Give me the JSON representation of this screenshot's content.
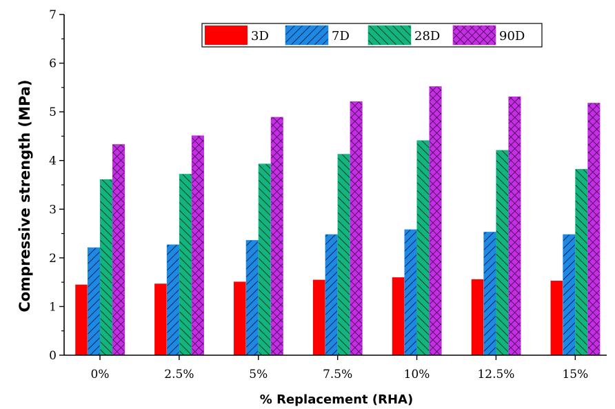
{
  "chart_data": {
    "type": "bar",
    "xlabel": "% Replacement (RHA)",
    "ylabel": "Compressive strength (MPa)",
    "ylim": [
      0,
      7
    ],
    "yticks": [
      "0",
      "1",
      "2",
      "3",
      "4",
      "5",
      "6",
      "7"
    ],
    "categories": [
      "0%",
      "2.5%",
      "5%",
      "7.5%",
      "10%",
      "12.5%",
      "15%"
    ],
    "legend_position": "top-right",
    "series": [
      {
        "name": "3D",
        "color": "#ff0000",
        "pattern": "solid",
        "values": [
          1.45,
          1.47,
          1.51,
          1.55,
          1.6,
          1.56,
          1.53
        ]
      },
      {
        "name": "7D",
        "color": "#1e88e5",
        "pattern": "hatch-fwd",
        "values": [
          2.21,
          2.27,
          2.36,
          2.48,
          2.58,
          2.53,
          2.48
        ]
      },
      {
        "name": "28D",
        "color": "#13b57e",
        "pattern": "hatch-back",
        "values": [
          3.61,
          3.72,
          3.93,
          4.13,
          4.41,
          4.21,
          3.82
        ]
      },
      {
        "name": "90D",
        "color": "#c62ee6",
        "pattern": "crosshatch",
        "values": [
          4.33,
          4.51,
          4.89,
          5.21,
          5.52,
          5.31,
          5.18
        ]
      }
    ]
  }
}
